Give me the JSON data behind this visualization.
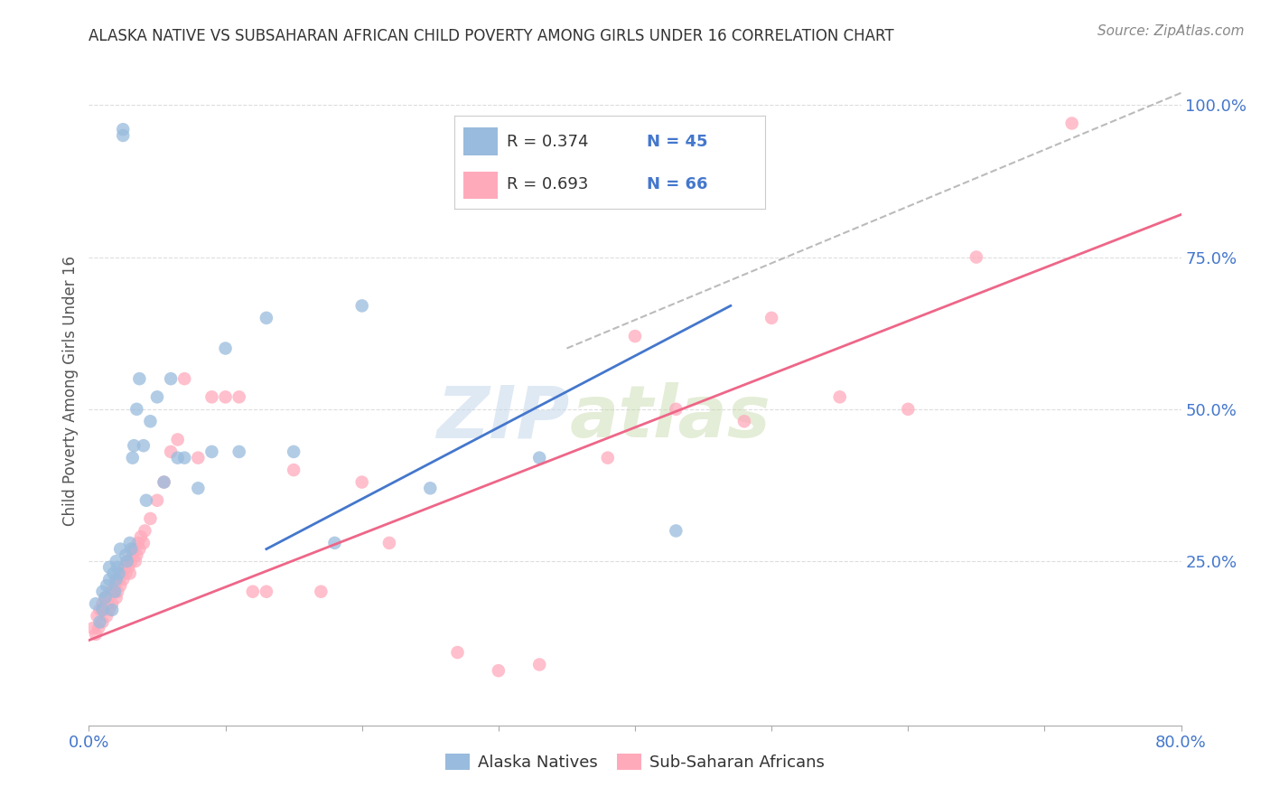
{
  "title": "ALASKA NATIVE VS SUBSAHARAN AFRICAN CHILD POVERTY AMONG GIRLS UNDER 16 CORRELATION CHART",
  "source": "Source: ZipAtlas.com",
  "ylabel": "Child Poverty Among Girls Under 16",
  "xlim": [
    0.0,
    0.8
  ],
  "ylim": [
    -0.02,
    1.08
  ],
  "xticks": [
    0.0,
    0.1,
    0.2,
    0.3,
    0.4,
    0.5,
    0.6,
    0.7,
    0.8
  ],
  "yticks_right": [
    0.25,
    0.5,
    0.75,
    1.0
  ],
  "ytick_right_labels": [
    "25.0%",
    "50.0%",
    "75.0%",
    "100.0%"
  ],
  "blue_color": "#99BBDD",
  "pink_color": "#FFAABB",
  "blue_line_color": "#4477CC",
  "pink_line_color": "#EE6688",
  "legend_R_blue": "R = 0.374",
  "legend_N_blue": "N = 45",
  "legend_R_pink": "R = 0.693",
  "legend_N_pink": "N = 66",
  "legend_label_blue": "Alaska Natives",
  "legend_label_pink": "Sub-Saharan Africans",
  "watermark": "ZIPatlas",
  "blue_scatter_x": [
    0.005,
    0.008,
    0.01,
    0.01,
    0.012,
    0.013,
    0.015,
    0.015,
    0.017,
    0.018,
    0.019,
    0.02,
    0.02,
    0.021,
    0.022,
    0.023,
    0.025,
    0.025,
    0.027,
    0.028,
    0.03,
    0.031,
    0.032,
    0.033,
    0.035,
    0.037,
    0.04,
    0.042,
    0.045,
    0.05,
    0.055,
    0.06,
    0.065,
    0.07,
    0.08,
    0.09,
    0.1,
    0.11,
    0.13,
    0.15,
    0.18,
    0.2,
    0.25,
    0.33,
    0.43
  ],
  "blue_scatter_y": [
    0.18,
    0.15,
    0.17,
    0.2,
    0.19,
    0.21,
    0.22,
    0.24,
    0.17,
    0.23,
    0.2,
    0.22,
    0.25,
    0.24,
    0.23,
    0.27,
    0.95,
    0.96,
    0.26,
    0.25,
    0.28,
    0.27,
    0.42,
    0.44,
    0.5,
    0.55,
    0.44,
    0.35,
    0.48,
    0.52,
    0.38,
    0.55,
    0.42,
    0.42,
    0.37,
    0.43,
    0.6,
    0.43,
    0.65,
    0.43,
    0.28,
    0.67,
    0.37,
    0.42,
    0.3
  ],
  "pink_scatter_x": [
    0.003,
    0.005,
    0.006,
    0.007,
    0.008,
    0.01,
    0.01,
    0.011,
    0.012,
    0.013,
    0.014,
    0.015,
    0.016,
    0.017,
    0.018,
    0.019,
    0.02,
    0.02,
    0.021,
    0.022,
    0.023,
    0.024,
    0.025,
    0.026,
    0.027,
    0.028,
    0.029,
    0.03,
    0.031,
    0.032,
    0.033,
    0.034,
    0.035,
    0.036,
    0.037,
    0.038,
    0.04,
    0.041,
    0.045,
    0.05,
    0.055,
    0.06,
    0.065,
    0.07,
    0.08,
    0.09,
    0.1,
    0.11,
    0.12,
    0.13,
    0.15,
    0.17,
    0.2,
    0.22,
    0.27,
    0.3,
    0.33,
    0.38,
    0.4,
    0.43,
    0.48,
    0.5,
    0.55,
    0.6,
    0.65,
    0.72
  ],
  "pink_scatter_y": [
    0.14,
    0.13,
    0.16,
    0.14,
    0.17,
    0.15,
    0.18,
    0.17,
    0.19,
    0.16,
    0.18,
    0.17,
    0.2,
    0.18,
    0.2,
    0.21,
    0.19,
    0.22,
    0.2,
    0.22,
    0.21,
    0.23,
    0.22,
    0.24,
    0.23,
    0.25,
    0.24,
    0.23,
    0.25,
    0.26,
    0.27,
    0.25,
    0.26,
    0.28,
    0.27,
    0.29,
    0.28,
    0.3,
    0.32,
    0.35,
    0.38,
    0.43,
    0.45,
    0.55,
    0.42,
    0.52,
    0.52,
    0.52,
    0.2,
    0.2,
    0.4,
    0.2,
    0.38,
    0.28,
    0.1,
    0.07,
    0.08,
    0.42,
    0.62,
    0.5,
    0.48,
    0.65,
    0.52,
    0.5,
    0.75,
    0.97
  ],
  "blue_line_x": [
    0.13,
    0.47
  ],
  "blue_line_y": [
    0.27,
    0.67
  ],
  "pink_line_x": [
    0.0,
    0.8
  ],
  "pink_line_y": [
    0.12,
    0.82
  ],
  "diag_line_x": [
    0.35,
    0.8
  ],
  "diag_line_y": [
    0.6,
    1.02
  ],
  "background_color": "#FFFFFF",
  "grid_color": "#DDDDDD",
  "title_color": "#333333",
  "axis_label_color": "#555555",
  "right_axis_color": "#4477CC",
  "bottom_label_color": "#4477CC"
}
